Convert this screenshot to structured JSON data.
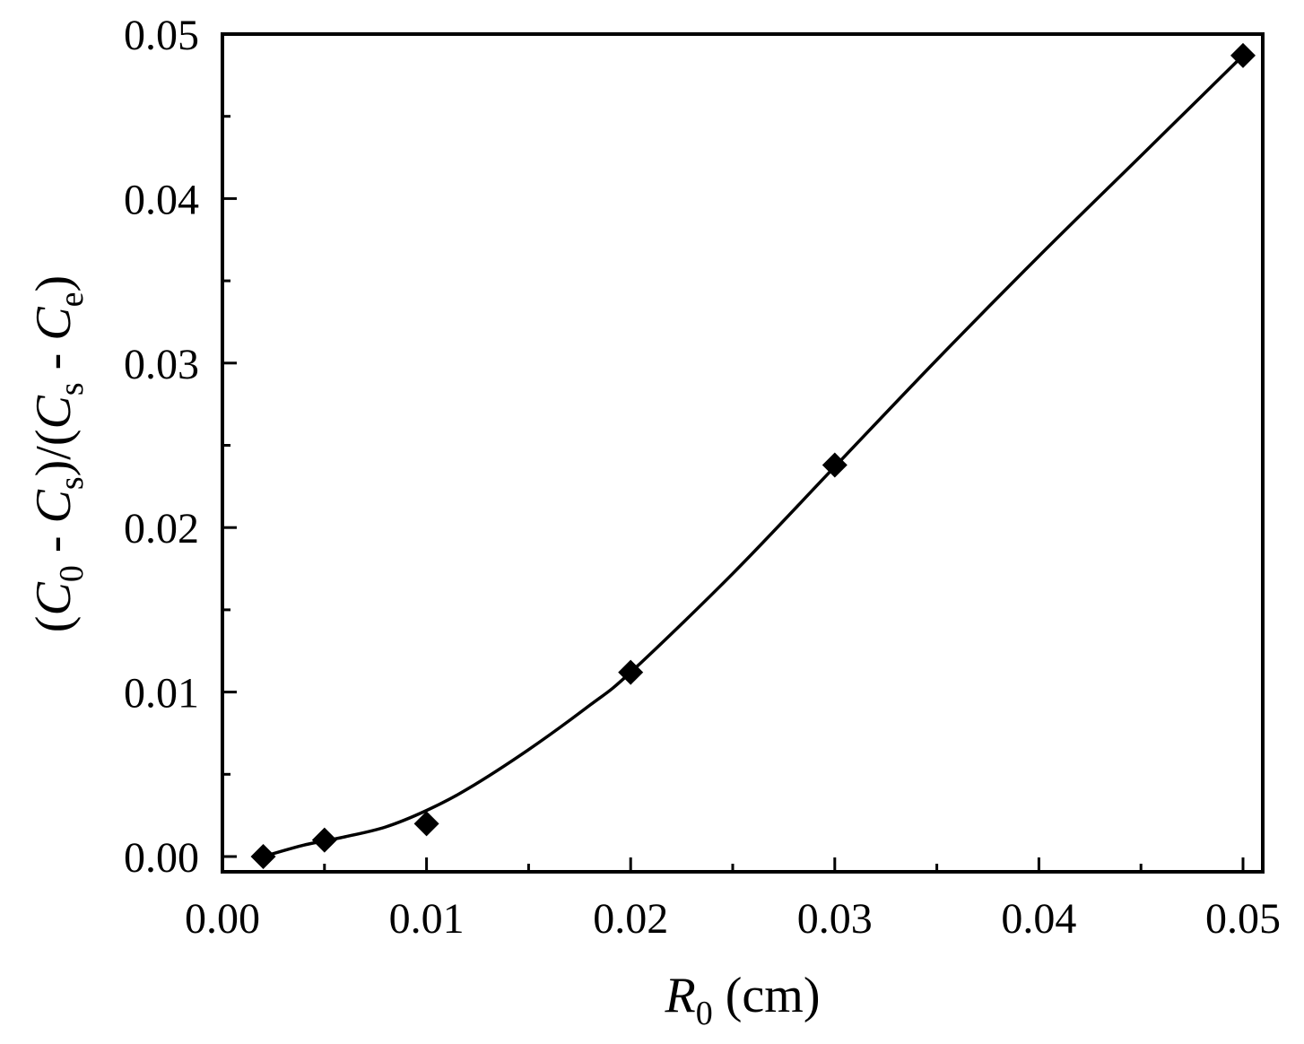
{
  "chart_data": {
    "type": "scatter",
    "xlabel": {
      "var": "R",
      "sub": "0",
      "unit": " (cm)"
    },
    "ylabel": {
      "parts": [
        {
          "t": "(",
          "s": "n"
        },
        {
          "t": "C",
          "s": "i"
        },
        {
          "t": "0",
          "s": "sub"
        },
        {
          "t": " - ",
          "s": "n"
        },
        {
          "t": "C",
          "s": "i"
        },
        {
          "t": "s",
          "s": "sub"
        },
        {
          "t": ")/(",
          "s": "n"
        },
        {
          "t": "C",
          "s": "i"
        },
        {
          "t": "s",
          "s": "sub"
        },
        {
          "t": " - ",
          "s": "n"
        },
        {
          "t": "C",
          "s": "i"
        },
        {
          "t": "e",
          "s": "sub"
        },
        {
          "t": ")",
          "s": "n"
        }
      ]
    },
    "xlim": [
      0.0,
      0.05
    ],
    "ylim": [
      0.0,
      0.05
    ],
    "xticks": [
      "0.00",
      "0.01",
      "0.02",
      "0.03",
      "0.04",
      "0.05"
    ],
    "yticks": [
      "0.00",
      "0.01",
      "0.02",
      "0.03",
      "0.04",
      "0.05"
    ],
    "grid": false,
    "legend": "none",
    "series": [
      {
        "marker": "diamond",
        "color": "#000000",
        "x": [
          0.002,
          0.005,
          0.01,
          0.02,
          0.03,
          0.05
        ],
        "y": [
          0.0,
          0.001,
          0.002,
          0.0112,
          0.0238,
          0.0487
        ]
      }
    ],
    "fit_curve": {
      "color": "#000000",
      "x": [
        0.002,
        0.004,
        0.006,
        0.008,
        0.01,
        0.012,
        0.015,
        0.018,
        0.02,
        0.025,
        0.03,
        0.035,
        0.04,
        0.045,
        0.05
      ],
      "y": [
        0.0,
        0.0007,
        0.0012,
        0.0018,
        0.0028,
        0.0041,
        0.0065,
        0.0092,
        0.0112,
        0.0172,
        0.0237,
        0.0302,
        0.0365,
        0.0426,
        0.0487
      ]
    }
  }
}
